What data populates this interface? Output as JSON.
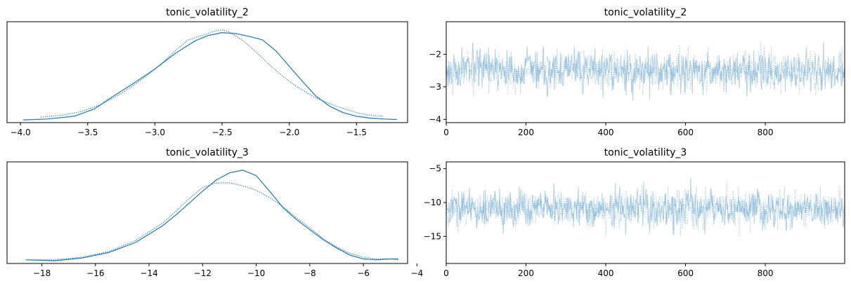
{
  "chart_data": [
    {
      "type": "line",
      "panel": "posterior-density",
      "title": "tonic_volatility_2",
      "xlabel": "",
      "ylabel": "",
      "xlim": [
        -4.1,
        -1.12
      ],
      "ylim": [
        -0.03,
        1.08
      ],
      "xticks": [
        -4.0,
        -3.5,
        -3.0,
        -2.5,
        -2.0,
        -1.5
      ],
      "xtick_labels": [
        "−4.0",
        "−3.5",
        "−3.0",
        "−2.5",
        "−2.0",
        "−1.5"
      ],
      "yticks": [],
      "color": "#1f77b4",
      "series": [
        {
          "style": "solid",
          "x": [
            -3.98,
            -3.8,
            -3.6,
            -3.45,
            -3.3,
            -3.15,
            -3.0,
            -2.85,
            -2.7,
            -2.6,
            -2.5,
            -2.4,
            -2.3,
            -2.2,
            -2.1,
            -2.0,
            -1.9,
            -1.8,
            -1.7,
            -1.6,
            -1.5,
            -1.4,
            -1.3,
            -1.2
          ],
          "y": [
            0.0,
            0.01,
            0.04,
            0.12,
            0.27,
            0.41,
            0.56,
            0.73,
            0.87,
            0.93,
            0.96,
            0.95,
            0.92,
            0.88,
            0.76,
            0.59,
            0.42,
            0.26,
            0.15,
            0.08,
            0.04,
            0.02,
            0.01,
            0.005
          ]
        },
        {
          "style": "dotted",
          "x": [
            -3.85,
            -3.7,
            -3.55,
            -3.4,
            -3.25,
            -3.1,
            -2.95,
            -2.85,
            -2.75,
            -2.65,
            -2.55,
            -2.5,
            -2.45,
            -2.35,
            -2.25,
            -2.15,
            -2.05,
            -1.95,
            -1.8,
            -1.65,
            -1.5,
            -1.4,
            -1.3
          ],
          "y": [
            0.03,
            0.05,
            0.09,
            0.17,
            0.29,
            0.44,
            0.62,
            0.76,
            0.88,
            0.93,
            0.98,
            0.99,
            0.97,
            0.88,
            0.75,
            0.61,
            0.48,
            0.37,
            0.24,
            0.15,
            0.08,
            0.05,
            0.04
          ]
        }
      ]
    },
    {
      "type": "line",
      "panel": "trace",
      "title": "tonic_volatility_2",
      "xlabel": "",
      "ylabel": "",
      "xlim": [
        0,
        999
      ],
      "ylim": [
        -4.1,
        -1.0
      ],
      "xticks": [
        0,
        200,
        400,
        600,
        800
      ],
      "xtick_labels": [
        "0",
        "200",
        "400",
        "600",
        "800"
      ],
      "yticks": [
        -4,
        -3,
        -2
      ],
      "ytick_labels": [
        "−4",
        "−3",
        "−2"
      ],
      "color": "#1f77b4",
      "alpha": 0.35,
      "n_draws": 1000,
      "center": -2.5,
      "spread": 0.42,
      "series": [
        {
          "style": "solid",
          "seed": 17
        },
        {
          "style": "dotted",
          "seed": 53
        }
      ]
    },
    {
      "type": "line",
      "panel": "posterior-density",
      "title": "tonic_volatility_3",
      "xlabel": "",
      "ylabel": "",
      "xlim": [
        -19.3,
        -4.35
      ],
      "ylim": [
        -0.03,
        1.08
      ],
      "xticks": [
        -18,
        -16,
        -14,
        -12,
        -10,
        -8,
        -6,
        -4
      ],
      "xtick_labels": [
        "−18",
        "−16",
        "−14",
        "−12",
        "−10",
        "−8",
        "−6",
        "−4"
      ],
      "yticks": [],
      "color": "#1f77b4",
      "series": [
        {
          "style": "solid",
          "x": [
            -18.6,
            -17.5,
            -16.5,
            -15.5,
            -14.5,
            -13.5,
            -13.0,
            -12.5,
            -12.0,
            -11.5,
            -11.0,
            -10.5,
            -10.0,
            -9.5,
            -9.0,
            -8.5,
            -8.0,
            -7.5,
            -7.0,
            -6.5,
            -6.0,
            -5.5,
            -5.0,
            -4.7
          ],
          "y": [
            0.01,
            0.0,
            0.03,
            0.09,
            0.2,
            0.38,
            0.5,
            0.63,
            0.76,
            0.88,
            0.96,
            0.99,
            0.93,
            0.76,
            0.58,
            0.45,
            0.34,
            0.23,
            0.14,
            0.06,
            0.02,
            0.01,
            0.02,
            0.02
          ]
        },
        {
          "style": "dotted",
          "x": [
            -18.6,
            -17.5,
            -16.5,
            -15.5,
            -14.5,
            -13.5,
            -13.0,
            -12.5,
            -12.0,
            -11.5,
            -11.0,
            -10.5,
            -10.0,
            -9.5,
            -9.0,
            -8.5,
            -8.0,
            -7.5,
            -7.0,
            -6.5,
            -6.0,
            -5.5,
            -5.0,
            -4.7
          ],
          "y": [
            0.01,
            0.01,
            0.04,
            0.1,
            0.22,
            0.41,
            0.54,
            0.68,
            0.8,
            0.85,
            0.85,
            0.82,
            0.77,
            0.69,
            0.59,
            0.47,
            0.36,
            0.24,
            0.15,
            0.08,
            0.04,
            0.02,
            0.02,
            0.01
          ]
        }
      ]
    },
    {
      "type": "line",
      "panel": "trace",
      "title": "tonic_volatility_3",
      "xlabel": "",
      "ylabel": "",
      "xlim": [
        0,
        999
      ],
      "ylim": [
        -19.0,
        -4.0
      ],
      "xticks": [
        0,
        200,
        400,
        600,
        800
      ],
      "xtick_labels": [
        "0",
        "200",
        "400",
        "600",
        "800"
      ],
      "yticks": [
        -15,
        -10,
        -5
      ],
      "ytick_labels": [
        "−15",
        "−10",
        "−5"
      ],
      "color": "#1f77b4",
      "alpha": 0.35,
      "n_draws": 1000,
      "center": -11.0,
      "spread": 1.9,
      "series": [
        {
          "style": "solid",
          "seed": 29
        },
        {
          "style": "dotted",
          "seed": 71
        }
      ]
    }
  ]
}
